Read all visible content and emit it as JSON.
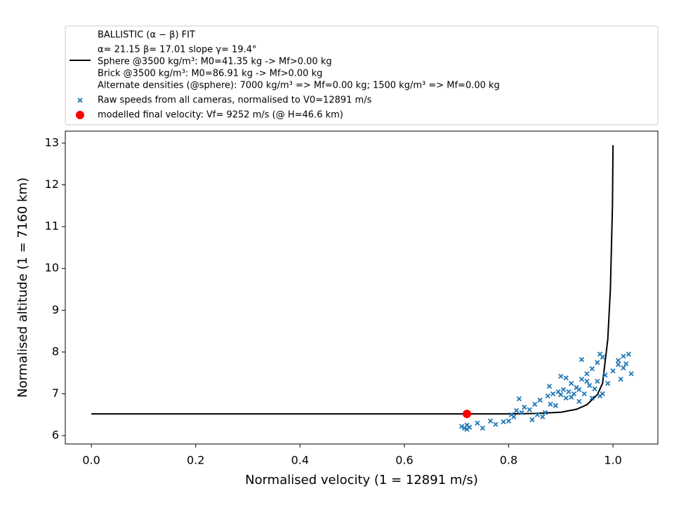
{
  "chart_data": {
    "type": "scatter",
    "xlabel": "Normalised velocity (1 = 12891 m/s)",
    "ylabel": "Normalised altitude (1 = 7160 km)",
    "xlim": [
      -0.05,
      1.086
    ],
    "ylim": [
      5.8,
      13.285
    ],
    "xticks": [
      {
        "value": 0,
        "label": "0.0"
      },
      {
        "value": 0.2,
        "label": "0.2"
      },
      {
        "value": 0.4,
        "label": "0.4"
      },
      {
        "value": 0.6,
        "label": "0.6"
      },
      {
        "value": 0.8,
        "label": "0.8"
      },
      {
        "value": 1,
        "label": "1.0"
      }
    ],
    "yticks": [
      6,
      7,
      8,
      9,
      10,
      11,
      12,
      13
    ],
    "legend": "top-outside",
    "series": [
      {
        "name": [
          "BALLISTIC (α − β) FIT",
          "α= 21.15     β= 17.01     slope γ= 19.4°",
          " Sphere @3500 kg/m³: M0=41.35 kg -> Mf>0.00 kg",
          " Brick @3500 kg/m³: M0=86.91 kg -> Mf>0.00 kg",
          "Alternate densities (@sphere): 7000 kg/m³ => Mf=0.00 kg; 1500 kg/m³ => Mf=0.00 kg"
        ],
        "marker": "line",
        "color": "#000000",
        "x": [
          0,
          0.2,
          0.4,
          0.6,
          0.7,
          0.8,
          0.85,
          0.9,
          0.93,
          0.95,
          0.97,
          0.98,
          0.99,
          0.995,
          0.999,
          1.0
        ],
        "y": [
          6.52,
          6.52,
          6.52,
          6.52,
          6.52,
          6.52,
          6.53,
          6.56,
          6.63,
          6.74,
          6.98,
          7.25,
          8.3,
          9.5,
          11.5,
          12.95
        ]
      },
      {
        "name": [
          "Raw speeds from all cameras, normalised to V0=12891 m/s"
        ],
        "marker": "x",
        "color": "#1f77b4",
        "x": [
          0.71,
          0.715,
          0.72,
          0.72,
          0.725,
          0.74,
          0.75,
          0.765,
          0.775,
          0.79,
          0.8,
          0.805,
          0.81,
          0.815,
          0.82,
          0.825,
          0.83,
          0.84,
          0.845,
          0.85,
          0.855,
          0.86,
          0.865,
          0.87,
          0.875,
          0.878,
          0.88,
          0.885,
          0.89,
          0.895,
          0.9,
          0.9,
          0.905,
          0.91,
          0.91,
          0.915,
          0.92,
          0.92,
          0.925,
          0.93,
          0.935,
          0.935,
          0.94,
          0.94,
          0.945,
          0.95,
          0.95,
          0.955,
          0.96,
          0.96,
          0.965,
          0.97,
          0.97,
          0.975,
          0.975,
          0.98,
          0.98,
          0.985,
          0.99,
          1.0,
          1.01,
          1.01,
          1.015,
          1.02,
          1.02,
          1.025,
          1.03,
          1.035
        ],
        "y": [
          6.22,
          6.18,
          6.15,
          6.25,
          6.2,
          6.3,
          6.18,
          6.35,
          6.27,
          6.33,
          6.35,
          6.5,
          6.45,
          6.6,
          6.88,
          6.55,
          6.68,
          6.62,
          6.38,
          6.75,
          6.5,
          6.85,
          6.45,
          6.55,
          6.95,
          7.18,
          6.75,
          7.0,
          6.72,
          7.05,
          6.98,
          7.42,
          7.1,
          6.9,
          7.38,
          7.05,
          6.92,
          7.25,
          7.0,
          7.15,
          6.82,
          7.1,
          7.35,
          7.82,
          7.0,
          7.48,
          7.3,
          7.2,
          7.6,
          6.9,
          7.12,
          7.3,
          7.75,
          7.95,
          6.95,
          7.0,
          7.88,
          7.45,
          7.25,
          7.55,
          7.7,
          7.8,
          7.35,
          7.62,
          7.9,
          7.72,
          7.95,
          7.48
        ]
      },
      {
        "name": [
          "modelled final velocity: Vf= 9252 m/s (@ H=46.6 km)"
        ],
        "marker": "o",
        "color": "#ff0000",
        "x": [
          0.72
        ],
        "y": [
          6.52
        ]
      }
    ]
  }
}
